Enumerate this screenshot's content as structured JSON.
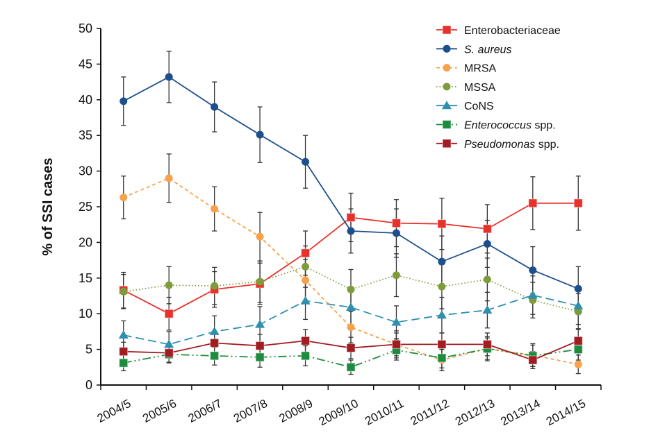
{
  "chart_data": {
    "type": "line",
    "title": "",
    "xlabel": "",
    "ylabel": "% of SSI cases",
    "ylim": [
      0,
      50
    ],
    "yticks": [
      0,
      5,
      10,
      15,
      20,
      25,
      30,
      35,
      40,
      45,
      50
    ],
    "grid": false,
    "legend_position": "top-right",
    "categories": [
      "2004/5",
      "2005/6",
      "2006/7",
      "2007/8",
      "2008/9",
      "2009/10",
      "2010/11",
      "2011/12",
      "2012/13",
      "2013/14",
      "2014/15"
    ],
    "series": [
      {
        "name": "Enterobacteriaceae",
        "italic_part": "",
        "rest": "Enterobacteriaceae",
        "color": "#e8312a",
        "marker": "square",
        "dash": "solid",
        "values": [
          13.3,
          10.0,
          13.4,
          14.2,
          18.5,
          23.5,
          22.7,
          22.6,
          21.9,
          25.5,
          25.5
        ],
        "err": [
          2.5,
          2.3,
          2.5,
          2.9,
          3.1,
          3.4,
          3.3,
          3.6,
          3.4,
          3.7,
          3.8
        ]
      },
      {
        "name": "S. aureus",
        "italic_part": "S. aureus",
        "rest": "",
        "color": "#1c4f8c",
        "marker": "circle",
        "dash": "solid",
        "values": [
          39.8,
          43.2,
          39.0,
          35.1,
          31.3,
          21.6,
          21.3,
          17.3,
          19.8,
          16.1,
          13.5
        ],
        "err": [
          3.4,
          3.6,
          3.5,
          3.9,
          3.7,
          3.1,
          3.4,
          3.6,
          3.3,
          3.3,
          3.1
        ]
      },
      {
        "name": "MRSA",
        "italic_part": "",
        "rest": "MRSA",
        "color": "#f7a24b",
        "marker": "circle",
        "dash": "dashed",
        "values": [
          26.3,
          29.0,
          24.7,
          20.8,
          14.7,
          8.1,
          5.7,
          3.5,
          5.1,
          4.2,
          2.9
        ],
        "err": [
          3.0,
          3.4,
          3.1,
          3.4,
          2.9,
          2.2,
          1.9,
          1.5,
          1.7,
          1.6,
          1.3
        ]
      },
      {
        "name": "MSSA",
        "italic_part": "",
        "rest": "MSSA",
        "color": "#7f9c3c",
        "marker": "circle",
        "dash": "dotted",
        "values": [
          13.1,
          14.0,
          13.9,
          14.5,
          16.6,
          13.4,
          15.4,
          13.8,
          14.8,
          11.9,
          10.3
        ],
        "err": [
          2.4,
          2.6,
          2.6,
          2.9,
          2.9,
          2.8,
          3.0,
          3.1,
          3.0,
          2.5,
          2.5
        ]
      },
      {
        "name": "CoNS",
        "italic_part": "",
        "rest": "CoNS",
        "color": "#2e8fae",
        "marker": "triangle",
        "dash": "longdash",
        "values": [
          7.0,
          5.7,
          7.5,
          8.5,
          11.8,
          10.9,
          8.8,
          9.8,
          10.5,
          12.6,
          11.1
        ],
        "err": [
          2.0,
          1.8,
          2.2,
          2.5,
          2.6,
          2.5,
          2.3,
          2.5,
          2.5,
          2.7,
          2.6
        ]
      },
      {
        "name": "Enterococcus spp.",
        "italic_part": "Enterococcus",
        "rest": " spp.",
        "color": "#1e8c3e",
        "marker": "square",
        "dash": "dashdotdot",
        "values": [
          3.1,
          4.3,
          4.1,
          3.9,
          4.1,
          2.5,
          4.9,
          3.8,
          5.1,
          4.1,
          5.0
        ],
        "err": [
          1.1,
          1.2,
          1.3,
          1.4,
          1.4,
          1.0,
          1.4,
          1.4,
          1.5,
          1.5,
          1.5
        ]
      },
      {
        "name": "Pseudomonas spp.",
        "italic_part": "Pseudomonas",
        "rest": " spp.",
        "color": "#a21c22",
        "marker": "square",
        "dash": "solid",
        "values": [
          4.7,
          4.5,
          5.9,
          5.5,
          6.2,
          5.2,
          5.7,
          5.7,
          5.7,
          3.5,
          6.2
        ],
        "err": [
          1.3,
          1.3,
          1.5,
          1.6,
          1.6,
          1.5,
          1.6,
          1.6,
          1.6,
          1.2,
          1.7
        ]
      }
    ]
  }
}
